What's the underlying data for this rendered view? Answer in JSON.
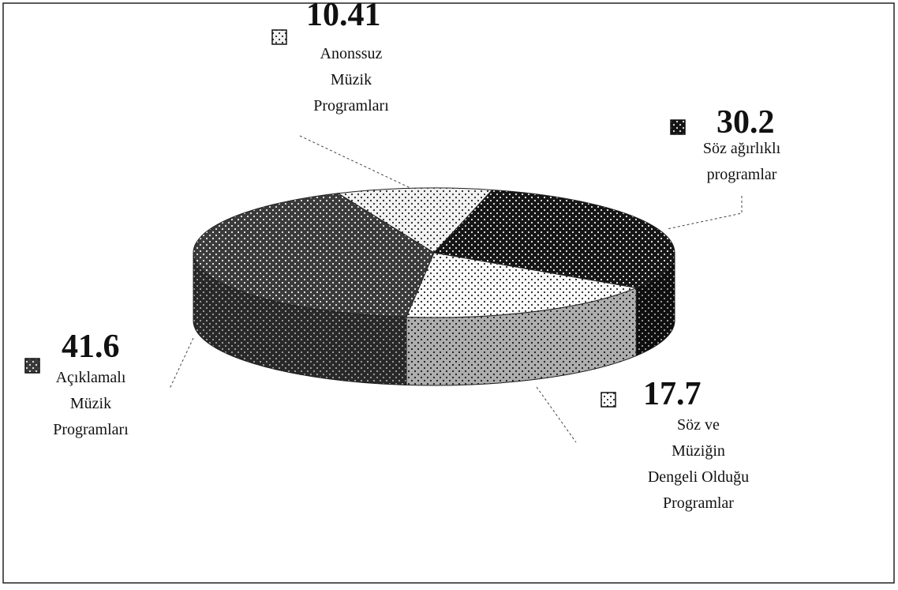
{
  "chart_data": {
    "type": "pie",
    "categories": [
      "Anonssuz\nMüzik\nProgramları",
      "Söz ağırlıklı\nprogramlar",
      "Söz ve\nMüziğin\nDengeli Olduğu\nProgramlar",
      "Açıklamalı\nMüzik\nProgramları"
    ],
    "values": [
      10.41,
      30.2,
      17.7,
      41.6
    ],
    "colors": [
      "#f2f2f2",
      "#151515",
      "#fafafa",
      "#3a3a3a"
    ]
  }
}
